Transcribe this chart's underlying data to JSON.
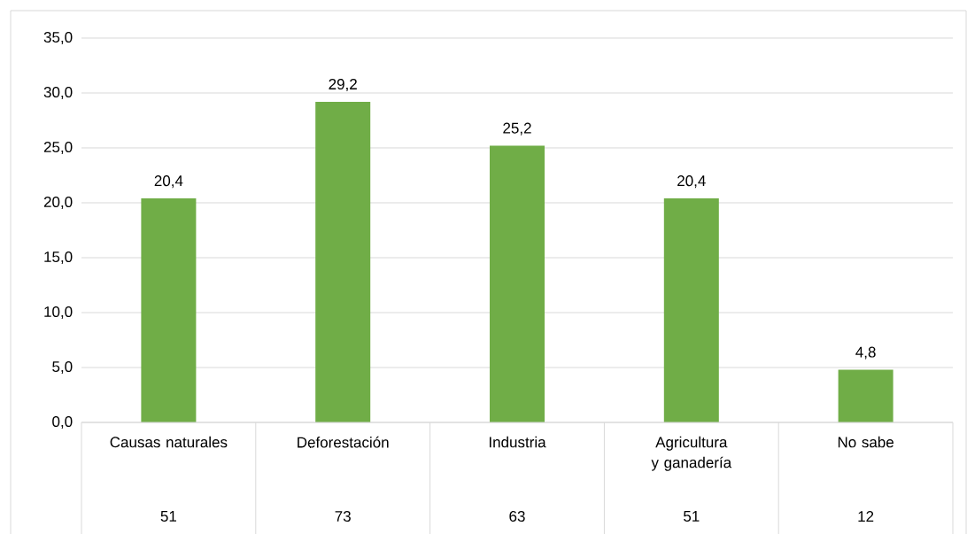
{
  "chart_data": {
    "type": "bar",
    "categories": [
      "Causas naturales",
      "Deforestación",
      "Industria",
      "Agricultura y ganadería",
      "No sabe"
    ],
    "values": [
      20.4,
      29.2,
      25.2,
      20.4,
      4.8
    ],
    "value_labels": [
      "20,4",
      "29,2",
      "25,2",
      "20,4",
      "4,8"
    ],
    "color": "#70ad47",
    "ylim": [
      0,
      35
    ],
    "yticks": [
      {
        "value": 0,
        "label": "0,0"
      },
      {
        "value": 5,
        "label": "5,0"
      },
      {
        "value": 10,
        "label": "10,0"
      },
      {
        "value": 15,
        "label": "15,0"
      },
      {
        "value": 20,
        "label": "20,0"
      },
      {
        "value": 25,
        "label": "25,0"
      },
      {
        "value": 30,
        "label": "30,0"
      },
      {
        "value": 35,
        "label": "35,0"
      }
    ],
    "grid": "y",
    "annotations": [
      "51",
      "73",
      "63",
      "51",
      "12"
    ]
  }
}
